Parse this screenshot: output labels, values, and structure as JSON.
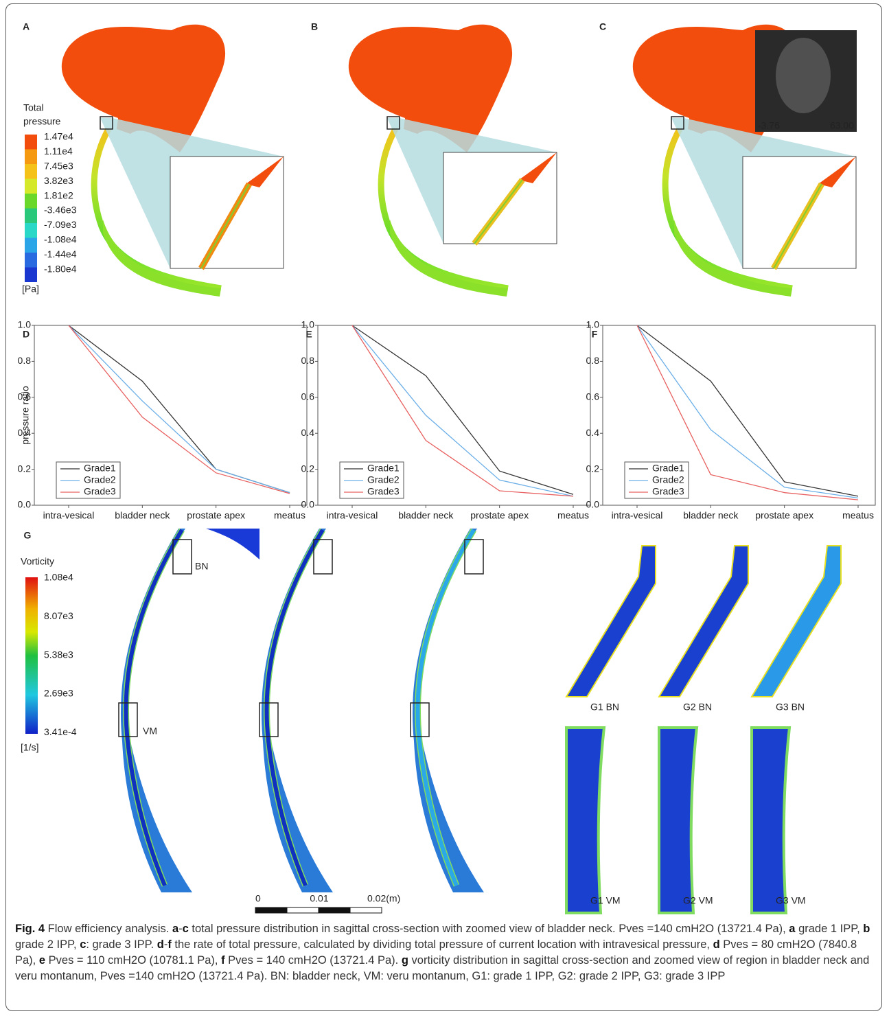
{
  "panel_labels": [
    "A",
    "B",
    "C",
    "D",
    "E",
    "F",
    "G"
  ],
  "pressure_legend": {
    "title_lines": [
      "Total",
      "pressure"
    ],
    "ticks": [
      "1.47e4",
      "1.11e4",
      "7.45e3",
      "3.82e3",
      "1.81e2",
      "-3.46e3",
      "-7.09e3",
      "-1.08e4",
      "-1.44e4",
      "-1.80e4"
    ],
    "unit": "[Pa]"
  },
  "mri_labels": [
    "-3.76",
    "63.00"
  ],
  "chart_data": [
    {
      "type": "line",
      "ylabel": "pressure ratio",
      "categories": [
        "intra-vesical",
        "bladder neck",
        "prostate apex",
        "meatus"
      ],
      "ylim": [
        0,
        1
      ],
      "yticks": [
        {
          "value": 0,
          "label": "0.0"
        },
        0.2,
        0.4,
        0.6,
        0.8,
        {
          "value": 1,
          "label": "1.0"
        }
      ],
      "legend": "lower-left",
      "series": [
        {
          "name": "Grade1",
          "color": "#333333",
          "values": [
            1,
            0.69,
            0.2,
            0.07
          ]
        },
        {
          "name": "Grade2",
          "color": "#6aaee8",
          "values": [
            1,
            0.58,
            0.2,
            0.07
          ]
        },
        {
          "name": "Grade3",
          "color": "#e86060",
          "values": [
            1,
            0.49,
            0.18,
            0.065
          ]
        }
      ]
    },
    {
      "type": "line",
      "categories": [
        "intra-vesical",
        "bladder neck",
        "prostate apex",
        "meatus"
      ],
      "ylim": [
        0,
        1
      ],
      "yticks": [
        {
          "value": 0,
          "label": "0.0"
        },
        0.2,
        0.4,
        0.6,
        0.8,
        {
          "value": 1,
          "label": "1.0"
        }
      ],
      "legend": "lower-left",
      "series": [
        {
          "name": "Grade1",
          "color": "#333333",
          "values": [
            1,
            0.72,
            0.19,
            0.06
          ]
        },
        {
          "name": "Grade2",
          "color": "#6aaee8",
          "values": [
            1,
            0.5,
            0.14,
            0.05
          ]
        },
        {
          "name": "Grade3",
          "color": "#e86060",
          "values": [
            1,
            0.36,
            0.08,
            0.05
          ]
        }
      ]
    },
    {
      "type": "line",
      "categories": [
        "intra-vesical",
        "bladder neck",
        "prostate apex",
        "meatus"
      ],
      "ylim": [
        0,
        1
      ],
      "yticks": [
        {
          "value": 0,
          "label": "0.0"
        },
        0.2,
        0.4,
        0.6,
        0.8,
        {
          "value": 1,
          "label": "1.0"
        }
      ],
      "legend": "lower-left",
      "series": [
        {
          "name": "Grade1",
          "color": "#333333",
          "values": [
            1,
            0.69,
            0.13,
            0.05
          ]
        },
        {
          "name": "Grade2",
          "color": "#6aaee8",
          "values": [
            1,
            0.42,
            0.1,
            0.04
          ]
        },
        {
          "name": "Grade3",
          "color": "#e86060",
          "values": [
            1,
            0.17,
            0.07,
            0.03
          ]
        }
      ]
    }
  ],
  "vorticity_legend": {
    "title": "Vorticity",
    "ticks": [
      "1.08e4",
      "8.07e3",
      "5.38e3",
      "2.69e3",
      "3.41e-4"
    ],
    "unit": "[1/s]"
  },
  "region_labels": [
    "BN",
    "VM"
  ],
  "zoom_labels": [
    "G1 BN",
    "G2 BN",
    "G3 BN",
    "G1 VM",
    "G2 VM",
    "G3 VM"
  ],
  "scale_labels": [
    "0",
    "0.01",
    "0.02(m)"
  ],
  "caption": [
    {
      "b": "Fig. 4"
    },
    {
      "t": " Flow efficiency analysis. "
    },
    {
      "b": "a"
    },
    {
      "t": "-"
    },
    {
      "b": "c"
    },
    {
      "t": " total pressure distribution in sagittal cross-section with zoomed view of bladder neck. Pves =140 cmH2O (13721.4 Pa), "
    },
    {
      "b": "a"
    },
    {
      "t": " grade 1 IPP, "
    },
    {
      "b": "b"
    },
    {
      "t": " grade 2 IPP, "
    },
    {
      "b": "c"
    },
    {
      "t": ": grade 3 IPP. "
    },
    {
      "b": "d"
    },
    {
      "t": "-"
    },
    {
      "b": "f"
    },
    {
      "t": " the rate of total pressure, calculated by dividing total pressure of current location with intravesical pressure, "
    },
    {
      "b": "d"
    },
    {
      "t": " Pves = 80 cmH2O (7840.8 Pa), "
    },
    {
      "b": "e"
    },
    {
      "t": " Pves = 110 cmH2O (10781.1 Pa), "
    },
    {
      "b": "f"
    },
    {
      "t": " Pves = 140 cmH2O (13721.4 Pa). "
    },
    {
      "b": "g"
    },
    {
      "t": " vorticity distribution in sagittal cross-section and zoomed view of region in bladder neck and veru montanum, Pves =140 cmH2O (13721.4 Pa). BN: bladder neck, VM: veru montanum, G1: grade 1 IPP, G2: grade 2 IPP, G3: grade 3 IPP"
    }
  ]
}
